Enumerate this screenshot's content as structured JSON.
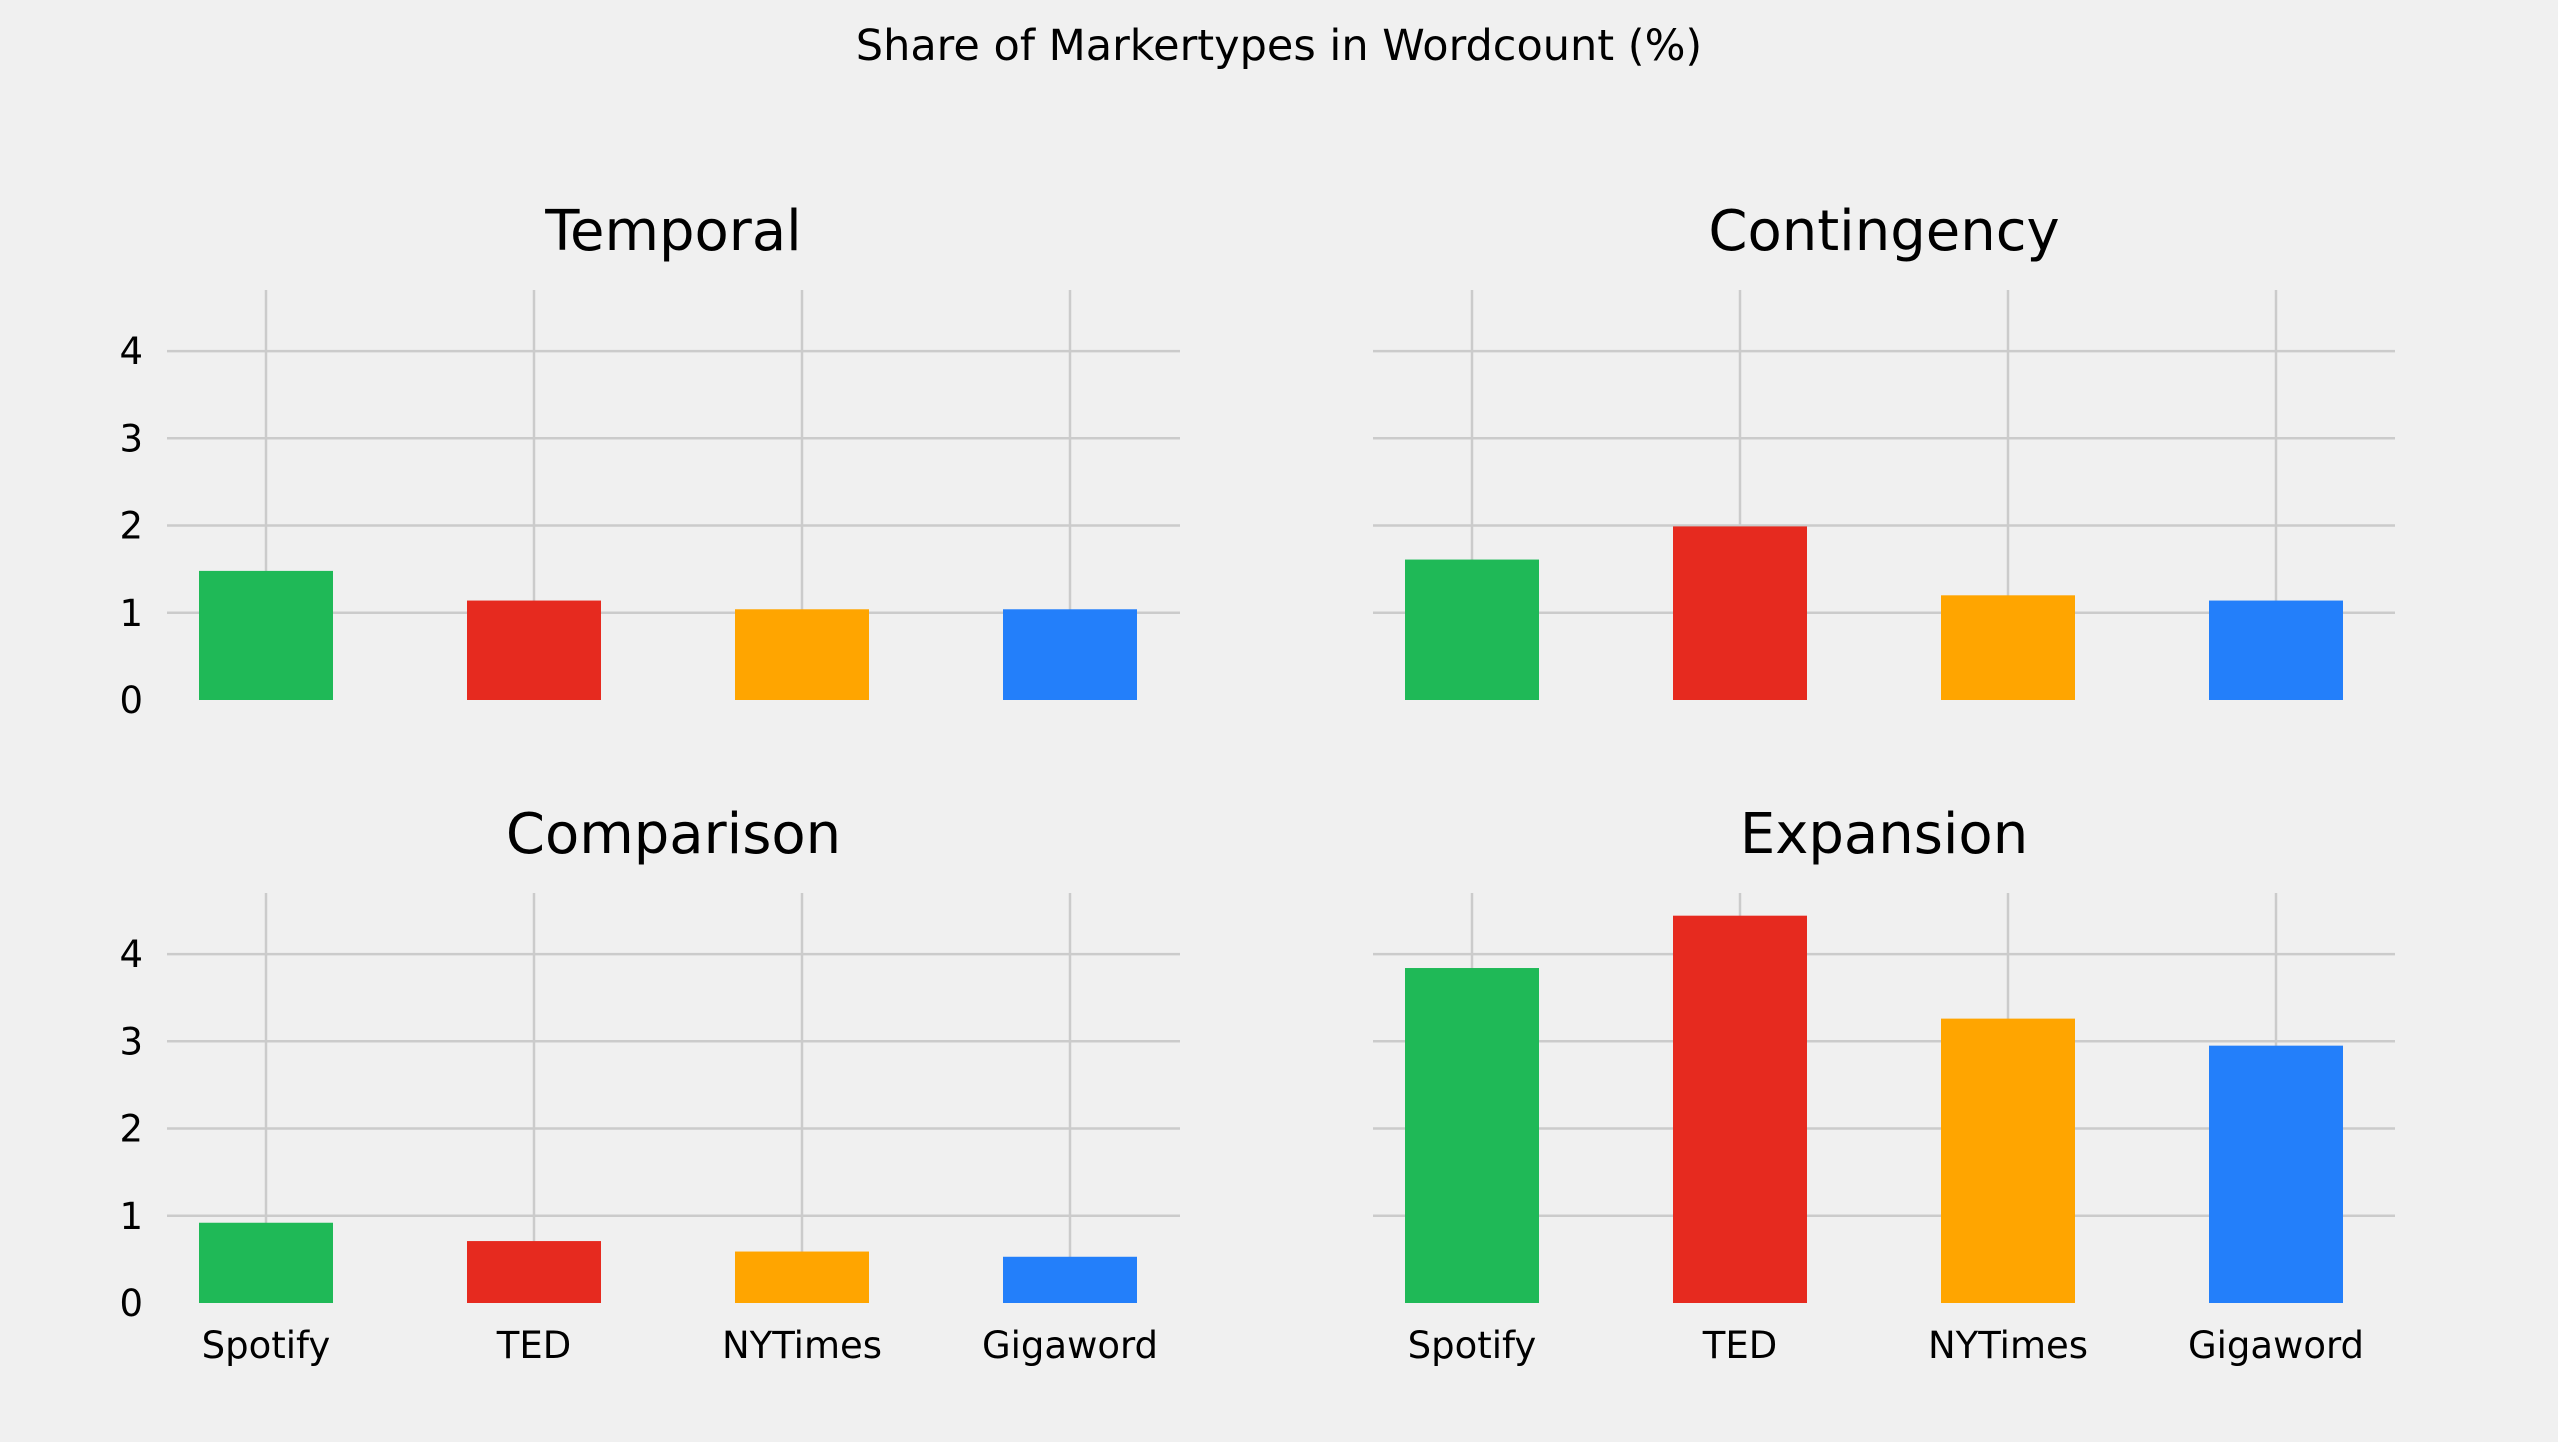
{
  "figure": {
    "title": "Share of Markertypes in Wordcount (%)",
    "background": "#f0f0f0"
  },
  "chart_data": [
    {
      "type": "bar",
      "title": "Temporal",
      "categories": [
        "Spotify",
        "TED",
        "NYTimes",
        "Gigaword"
      ],
      "values": [
        1.48,
        1.14,
        1.04,
        1.04
      ],
      "colors": [
        "#1fb957",
        "#e62a1f",
        "#ffa500",
        "#237ffa"
      ],
      "ylim": [
        0,
        4.7
      ],
      "yticks": [
        "0",
        "1",
        "2",
        "3",
        "4"
      ],
      "show_x_ticklabels": false,
      "show_y_ticklabels": true,
      "grid": true
    },
    {
      "type": "bar",
      "title": "Contingency",
      "categories": [
        "Spotify",
        "TED",
        "NYTimes",
        "Gigaword"
      ],
      "values": [
        1.61,
        1.99,
        1.2,
        1.14
      ],
      "colors": [
        "#1fb957",
        "#e62a1f",
        "#ffa500",
        "#237ffa"
      ],
      "ylim": [
        0,
        4.7
      ],
      "yticks": [
        "0",
        "1",
        "2",
        "3",
        "4"
      ],
      "show_x_ticklabels": false,
      "show_y_ticklabels": false,
      "grid": true
    },
    {
      "type": "bar",
      "title": "Comparison",
      "categories": [
        "Spotify",
        "TED",
        "NYTimes",
        "Gigaword"
      ],
      "values": [
        0.92,
        0.71,
        0.59,
        0.53
      ],
      "colors": [
        "#1fb957",
        "#e62a1f",
        "#ffa500",
        "#237ffa"
      ],
      "ylim": [
        0,
        4.7
      ],
      "yticks": [
        "0",
        "1",
        "2",
        "3",
        "4"
      ],
      "show_x_ticklabels": true,
      "show_y_ticklabels": true,
      "grid": true
    },
    {
      "type": "bar",
      "title": "Expansion",
      "categories": [
        "Spotify",
        "TED",
        "NYTimes",
        "Gigaword"
      ],
      "values": [
        3.84,
        4.44,
        3.26,
        2.95
      ],
      "colors": [
        "#1fb957",
        "#e62a1f",
        "#ffa500",
        "#237ffa"
      ],
      "ylim": [
        0,
        4.7
      ],
      "yticks": [
        "0",
        "1",
        "2",
        "3",
        "4"
      ],
      "show_x_ticklabels": true,
      "show_y_ticklabels": false,
      "grid": true
    }
  ]
}
